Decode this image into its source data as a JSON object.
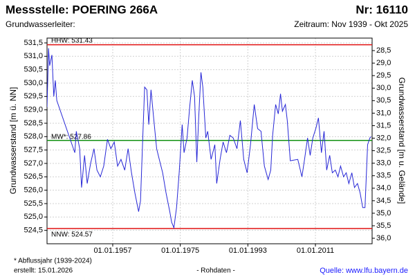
{
  "chart_data": {
    "type": "line",
    "title": "Messstelle: POERING 266A",
    "number": "Nr: 16110",
    "aquifer": "Grundwasserleiter:",
    "period": "Zeitraum: Nov 1939 - Okt 2025",
    "ylabel": "Grundwasserstand [m ü. NN]",
    "y2label": "Grundwasserstand [m u. Gelände]",
    "footnote": "* Abflussjahr (1939-2024)",
    "created": "erstellt:  15.01.2026",
    "rawdata": "- Rohdaten -",
    "source": "Quelle: www.lfu.bayern.de",
    "color": "#2626d6",
    "grid": true,
    "xlim": [
      1939.5,
      2026.1
    ],
    "xticks": [
      {
        "value": 1957,
        "label": "01.01.1957"
      },
      {
        "value": 1975,
        "label": "01.01.1975"
      },
      {
        "value": 1993,
        "label": "01.01.1993"
      },
      {
        "value": 2011,
        "label": "01.01.2011"
      }
    ],
    "ylim": [
      524.0,
      531.68
    ],
    "yticks": [
      {
        "value": 524.5,
        "label": "524,5"
      },
      {
        "value": 525.0,
        "label": "525,0"
      },
      {
        "value": 525.5,
        "label": "525,5"
      },
      {
        "value": 526.0,
        "label": "526,0"
      },
      {
        "value": 526.5,
        "label": "526,5"
      },
      {
        "value": 527.0,
        "label": "527,0"
      },
      {
        "value": 527.5,
        "label": "527,5"
      },
      {
        "value": 528.0,
        "label": "528,0"
      },
      {
        "value": 528.5,
        "label": "528,5"
      },
      {
        "value": 529.0,
        "label": "529,0"
      },
      {
        "value": 529.5,
        "label": "529,5"
      },
      {
        "value": 530.0,
        "label": "530,0"
      },
      {
        "value": 530.5,
        "label": "530,5"
      },
      {
        "value": 531.0,
        "label": "531,0"
      },
      {
        "value": 531.5,
        "label": "531,5"
      }
    ],
    "y2lim": [
      36.22,
      28.0
    ],
    "y2ticks": [
      {
        "value": 28.5,
        "label": "28,5"
      },
      {
        "value": 29.0,
        "label": "29,0"
      },
      {
        "value": 29.5,
        "label": "29,5"
      },
      {
        "value": 30.0,
        "label": "30,0"
      },
      {
        "value": 30.5,
        "label": "30,5"
      },
      {
        "value": 31.0,
        "label": "31,0"
      },
      {
        "value": 31.5,
        "label": "31,5"
      },
      {
        "value": 32.0,
        "label": "32,0"
      },
      {
        "value": 32.5,
        "label": "32,5"
      },
      {
        "value": 33.0,
        "label": "33,0"
      },
      {
        "value": 33.5,
        "label": "33,5"
      },
      {
        "value": 34.0,
        "label": "34,0"
      },
      {
        "value": 34.5,
        "label": "34,5"
      },
      {
        "value": 35.0,
        "label": "35,0"
      },
      {
        "value": 35.5,
        "label": "35,5"
      },
      {
        "value": 36.0,
        "label": "36,0"
      }
    ],
    "reference_lines": [
      {
        "label": "HHW: 531.43",
        "value": 531.43,
        "color": "#e01010"
      },
      {
        "label": "MW*: 527.86",
        "value": 527.86,
        "color": "#109010"
      },
      {
        "label": "NNW: 524.57",
        "value": 524.57,
        "color": "#e01010"
      }
    ],
    "x": [
      1939.5,
      1939.9,
      1940.2,
      1940.8,
      1941.3,
      1941.7,
      1942.1,
      1946.9,
      1947.3,
      1948.2,
      1948.7,
      1949.5,
      1950.2,
      1951.1,
      1952.0,
      1952.8,
      1953.7,
      1954.6,
      1955.6,
      1956.5,
      1957.4,
      1958.3,
      1959.2,
      1960.2,
      1961.1,
      1962.0,
      1962.9,
      1963.9,
      1964.4,
      1965.0,
      1965.5,
      1966.1,
      1966.6,
      1967.2,
      1967.9,
      1968.7,
      1969.4,
      1970.3,
      1971.2,
      1972.2,
      1972.7,
      1973.3,
      1974.0,
      1974.7,
      1975.5,
      1976.0,
      1976.8,
      1977.5,
      1978.2,
      1978.8,
      1979.4,
      1979.9,
      1980.5,
      1981.0,
      1981.8,
      1982.3,
      1983.2,
      1984.2,
      1984.7,
      1985.6,
      1986.4,
      1987.3,
      1988.2,
      1989.1,
      1990.1,
      1991.0,
      1991.9,
      1992.8,
      1993.7,
      1994.7,
      1995.6,
      1996.5,
      1997.4,
      1998.4,
      1999.1,
      1999.6,
      2000.4,
      2001.1,
      2001.7,
      2002.2,
      2003.0,
      2003.5,
      2004.3,
      2006.3,
      2007.4,
      2008.1,
      2008.9,
      2009.6,
      2010.3,
      2011.1,
      2011.8,
      2012.6,
      2013.3,
      2014.0,
      2014.8,
      2015.5,
      2016.3,
      2017.0,
      2017.7,
      2018.5,
      2019.2,
      2019.9,
      2020.7,
      2021.4,
      2022.2,
      2022.9,
      2023.6,
      2024.2,
      2024.9,
      2025.5,
      2025.8
    ],
    "values": [
      529.1,
      531.3,
      530.65,
      531.05,
      529.5,
      530.1,
      529.35,
      527.4,
      528.2,
      527.55,
      526.1,
      527.3,
      526.25,
      527.0,
      527.55,
      526.75,
      526.5,
      526.9,
      527.9,
      527.55,
      527.8,
      526.9,
      527.15,
      526.75,
      527.55,
      526.65,
      525.9,
      525.2,
      525.6,
      527.95,
      529.85,
      529.75,
      528.45,
      529.75,
      528.7,
      527.55,
      527.15,
      526.65,
      525.9,
      525.2,
      524.8,
      524.6,
      525.35,
      526.65,
      528.45,
      527.4,
      527.95,
      529.1,
      530.1,
      529.5,
      527.05,
      528.7,
      530.4,
      529.85,
      527.95,
      528.2,
      527.15,
      527.7,
      526.25,
      527.15,
      527.8,
      527.4,
      528.05,
      527.95,
      527.55,
      528.6,
      527.15,
      526.65,
      527.7,
      529.2,
      528.3,
      528.2,
      526.9,
      526.4,
      526.75,
      528.05,
      529.2,
      528.85,
      529.6,
      528.95,
      529.2,
      528.6,
      527.1,
      527.15,
      526.5,
      527.15,
      527.95,
      527.3,
      527.95,
      528.3,
      528.7,
      527.4,
      528.2,
      526.75,
      527.3,
      526.65,
      526.75,
      526.5,
      526.9,
      526.5,
      526.65,
      526.25,
      526.65,
      526.1,
      526.25,
      525.9,
      525.35,
      525.35,
      527.7,
      527.95,
      528.0
    ]
  }
}
